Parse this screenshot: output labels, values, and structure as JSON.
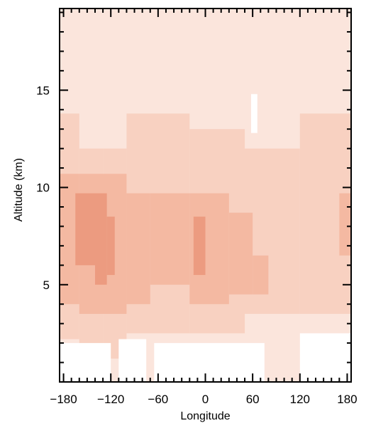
{
  "chart_data": {
    "type": "heatmap",
    "title": "",
    "xlabel": "Longitude",
    "ylabel": "Altitude (km)",
    "xlim": [
      -185,
      185
    ],
    "ylim": [
      0,
      19.2
    ],
    "xticks": [
      -180,
      -120,
      -60,
      0,
      60,
      120,
      180
    ],
    "xtick_labels": [
      "−180",
      "−120",
      "−60",
      "0",
      "60",
      "120",
      "180"
    ],
    "yticks": [
      5,
      10,
      15
    ],
    "ytick_labels": [
      "5",
      "10",
      "15"
    ],
    "grid": false,
    "colors": {
      "level1": "#fbe5dc",
      "level2": "#f8d1c1",
      "level3": "#f4b9a2",
      "level4": "#ec9b80",
      "missing": "#ffffff"
    },
    "cells": [
      {
        "level": 1,
        "x": [
          -185,
          185
        ],
        "y": [
          0,
          19.2
        ]
      },
      {
        "level": 2,
        "x": [
          -185,
          -160
        ],
        "y": [
          2.2,
          13.8
        ]
      },
      {
        "level": 2,
        "x": [
          -160,
          -130
        ],
        "y": [
          1.8,
          12
        ]
      },
      {
        "level": 2,
        "x": [
          -130,
          -100
        ],
        "y": [
          1.2,
          12
        ]
      },
      {
        "level": 2,
        "x": [
          -100,
          -20
        ],
        "y": [
          2.5,
          13.8
        ]
      },
      {
        "level": 2,
        "x": [
          -20,
          50
        ],
        "y": [
          2.5,
          13
        ]
      },
      {
        "level": 2,
        "x": [
          50,
          120
        ],
        "y": [
          3.5,
          12
        ]
      },
      {
        "level": 2,
        "x": [
          120,
          185
        ],
        "y": [
          3.5,
          13.8
        ]
      },
      {
        "level": 3,
        "x": [
          -185,
          -160
        ],
        "y": [
          4,
          10.7
        ]
      },
      {
        "level": 3,
        "x": [
          -160,
          -100
        ],
        "y": [
          3.5,
          10.7
        ]
      },
      {
        "level": 3,
        "x": [
          -100,
          -70
        ],
        "y": [
          4,
          9.7
        ]
      },
      {
        "level": 3,
        "x": [
          -70,
          -20
        ],
        "y": [
          5,
          9.7
        ]
      },
      {
        "level": 3,
        "x": [
          -20,
          30
        ],
        "y": [
          4,
          9.7
        ]
      },
      {
        "level": 3,
        "x": [
          30,
          60
        ],
        "y": [
          4.5,
          8.7
        ]
      },
      {
        "level": 3,
        "x": [
          60,
          80
        ],
        "y": [
          4.5,
          6.5
        ]
      },
      {
        "level": 3,
        "x": [
          170,
          185
        ],
        "y": [
          6.5,
          9.7
        ]
      },
      {
        "level": 4,
        "x": [
          -165,
          -140
        ],
        "y": [
          6,
          9.7
        ]
      },
      {
        "level": 4,
        "x": [
          -140,
          -125
        ],
        "y": [
          5,
          9.7
        ]
      },
      {
        "level": 4,
        "x": [
          -125,
          -115
        ],
        "y": [
          5.5,
          8.5
        ]
      },
      {
        "level": 4,
        "x": [
          -15,
          0
        ],
        "y": [
          5.5,
          8.5
        ]
      },
      {
        "level": 0,
        "x": [
          -185,
          -120
        ],
        "y": [
          0,
          2
        ]
      },
      {
        "level": 0,
        "x": [
          -110,
          -75
        ],
        "y": [
          0,
          2.2
        ]
      },
      {
        "level": 0,
        "x": [
          -65,
          75
        ],
        "y": [
          0,
          2
        ]
      },
      {
        "level": 0,
        "x": [
          120,
          185
        ],
        "y": [
          0,
          2.5
        ]
      },
      {
        "level": 0,
        "x": [
          58,
          66
        ],
        "y": [
          12.8,
          14.8
        ]
      }
    ]
  }
}
